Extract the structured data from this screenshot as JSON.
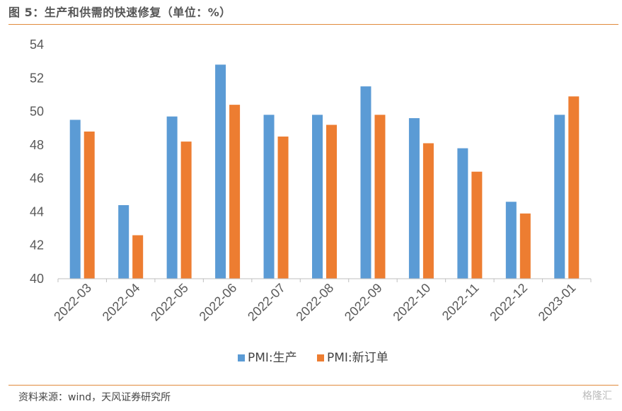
{
  "title": "图 5：生产和供需的快速修复（单位：%）",
  "source": "资料来源：wind，天风证券研究所",
  "watermark": "格隆汇",
  "chart_data": {
    "type": "bar",
    "categories": [
      "2022-03",
      "2022-04",
      "2022-05",
      "2022-06",
      "2022-07",
      "2022-08",
      "2022-09",
      "2022-10",
      "2022-11",
      "2022-12",
      "2023-01"
    ],
    "series": [
      {
        "name": "PMI:生产",
        "color": "#5b9bd5",
        "values": [
          49.5,
          44.4,
          49.7,
          52.8,
          49.8,
          49.8,
          51.5,
          49.6,
          47.8,
          44.6,
          49.8
        ]
      },
      {
        "name": "PMI:新订单",
        "color": "#ed7d31",
        "values": [
          48.8,
          42.6,
          48.2,
          50.4,
          48.5,
          49.2,
          49.8,
          48.1,
          46.4,
          43.9,
          50.9
        ]
      }
    ],
    "ylim": [
      40,
      54
    ],
    "yticks": [
      "40",
      "42",
      "44",
      "46",
      "48",
      "50",
      "52",
      "54"
    ],
    "grid": false,
    "legend": "bottom"
  }
}
